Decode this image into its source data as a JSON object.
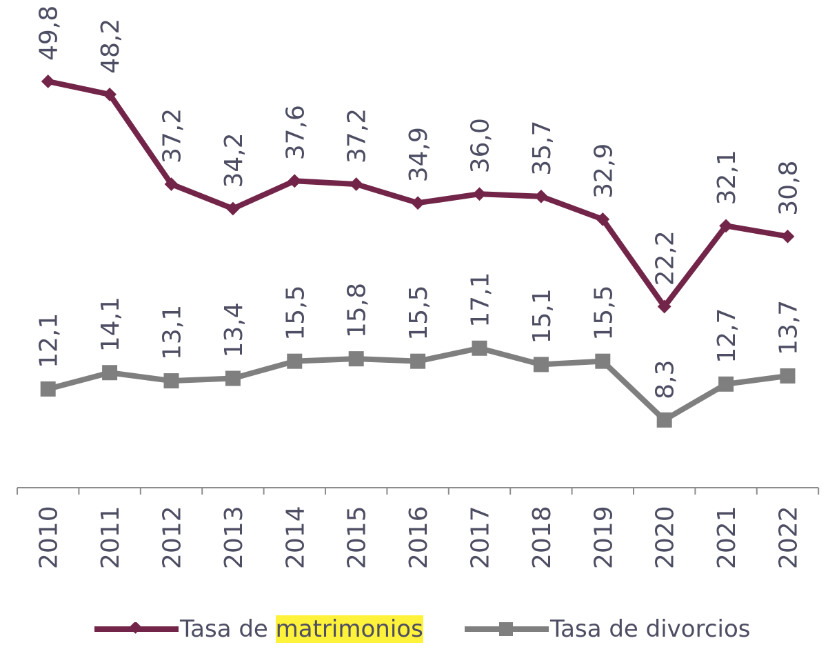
{
  "chart_data": {
    "type": "line",
    "categories": [
      "2010",
      "2011",
      "2012",
      "2013",
      "2014",
      "2015",
      "2016",
      "2017",
      "2018",
      "2019",
      "2020",
      "2021",
      "2022"
    ],
    "series": [
      {
        "name": "Tasa de matrimonios",
        "color": "#722548",
        "marker": "diamond",
        "values": [
          49.8,
          48.2,
          37.2,
          34.2,
          37.6,
          37.2,
          34.9,
          36.0,
          35.7,
          32.9,
          22.2,
          32.1,
          30.8
        ],
        "labels": [
          "49,8",
          "48,2",
          "37,2",
          "34,2",
          "37,6",
          "37,2",
          "34,9",
          "36,0",
          "35,7",
          "32,9",
          "22,2",
          "32,1",
          "30,8"
        ]
      },
      {
        "name": "Tasa de divorcios",
        "color": "#7f7f7f",
        "marker": "square",
        "values": [
          12.1,
          14.1,
          13.1,
          13.4,
          15.5,
          15.8,
          15.5,
          17.1,
          15.1,
          15.5,
          8.3,
          12.7,
          13.7
        ],
        "labels": [
          "12,1",
          "14,1",
          "13,1",
          "13,4",
          "15,5",
          "15,8",
          "15,5",
          "17,1",
          "15,1",
          "15,5",
          "8,3",
          "12,7",
          "13,7"
        ]
      }
    ],
    "ylim": [
      0,
      59
    ],
    "grid": false,
    "legend_position": "bottom",
    "highlighted_legend_word": "matrimonios"
  },
  "legend": {
    "item1_prefix": "Tasa de ",
    "item1_highlight": "matrimonios",
    "item2": "Tasa de divorcios"
  },
  "colors": {
    "axis": "#8c8c8c",
    "text": "#4d4d63",
    "highlight": "#fff23a"
  }
}
